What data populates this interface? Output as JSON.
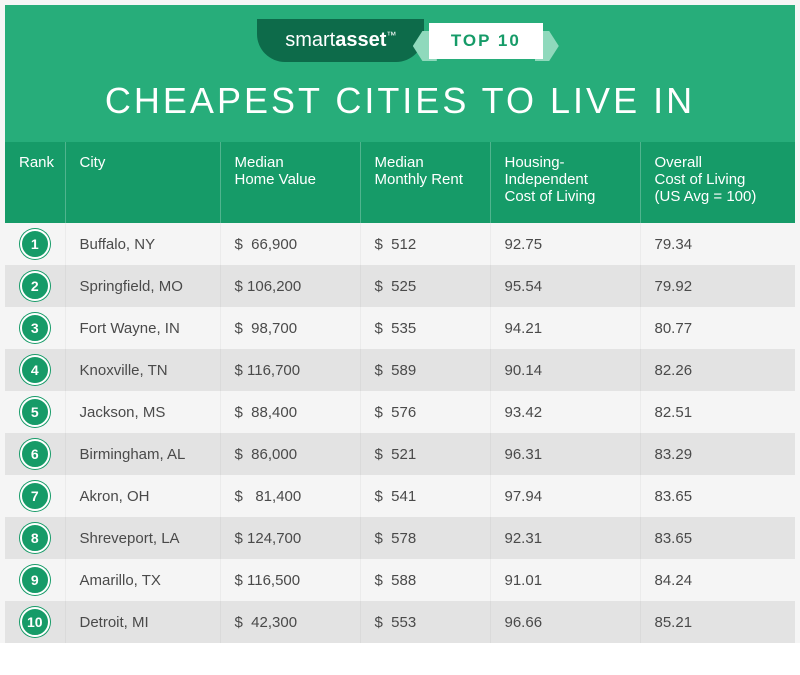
{
  "brand": {
    "name_part1": "smart",
    "name_part2": "asset",
    "tm": "™"
  },
  "header": {
    "top_label": "TOP 10",
    "title": "CHEAPEST CITIES TO LIVE IN"
  },
  "colors": {
    "header_bg": "#27ad7a",
    "thead_bg": "#169b68",
    "accent": "#169b68",
    "logo_bg": "#0d6b4a",
    "ribbon_bg": "#8fd9bc",
    "border_color": "#f5f5f5",
    "row_odd": "#f5f5f5",
    "row_even": "#e3e3e3",
    "text_color": "#4a4a4a"
  },
  "table": {
    "columns": [
      {
        "key": "rank",
        "label": "Rank"
      },
      {
        "key": "city",
        "label": "City"
      },
      {
        "key": "home_value",
        "label": "Median\nHome Value"
      },
      {
        "key": "rent",
        "label": "Median\nMonthly Rent"
      },
      {
        "key": "hicol",
        "label": "Housing-\nIndependent\nCost of Living"
      },
      {
        "key": "ocol",
        "label": "Overall\nCost of Living\n(US Avg = 100)"
      }
    ],
    "rows": [
      {
        "rank": "1",
        "city": "Buffalo, NY",
        "home_value": "$  66,900",
        "rent": "$  512",
        "hicol": "92.75",
        "ocol": "79.34"
      },
      {
        "rank": "2",
        "city": "Springfield, MO",
        "home_value": "$ 106,200",
        "rent": "$  525",
        "hicol": "95.54",
        "ocol": "79.92"
      },
      {
        "rank": "3",
        "city": "Fort Wayne, IN",
        "home_value": "$  98,700",
        "rent": "$  535",
        "hicol": "94.21",
        "ocol": "80.77"
      },
      {
        "rank": "4",
        "city": "Knoxville, TN",
        "home_value": "$ 116,700",
        "rent": "$  589",
        "hicol": "90.14",
        "ocol": "82.26"
      },
      {
        "rank": "5",
        "city": "Jackson, MS",
        "home_value": "$  88,400",
        "rent": "$  576",
        "hicol": "93.42",
        "ocol": "82.51"
      },
      {
        "rank": "6",
        "city": "Birmingham, AL",
        "home_value": "$  86,000",
        "rent": "$  521",
        "hicol": "96.31",
        "ocol": "83.29"
      },
      {
        "rank": "7",
        "city": "Akron, OH",
        "home_value": "$   81,400",
        "rent": "$  541",
        "hicol": "97.94",
        "ocol": "83.65"
      },
      {
        "rank": "8",
        "city": "Shreveport, LA",
        "home_value": "$ 124,700",
        "rent": "$  578",
        "hicol": "92.31",
        "ocol": "83.65"
      },
      {
        "rank": "9",
        "city": "Amarillo, TX",
        "home_value": "$ 116,500",
        "rent": "$  588",
        "hicol": "91.01",
        "ocol": "84.24"
      },
      {
        "rank": "10",
        "city": "Detroit, MI",
        "home_value": "$  42,300",
        "rent": "$  553",
        "hicol": "96.66",
        "ocol": "85.21"
      }
    ],
    "header_fontsize": 15,
    "cell_fontsize": 15,
    "title_fontsize": 36
  }
}
